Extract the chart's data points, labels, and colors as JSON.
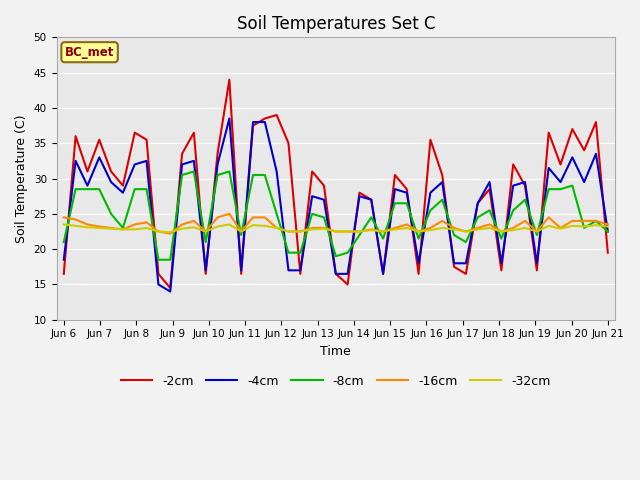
{
  "title": "Soil Temperatures Set C",
  "xlabel": "Time",
  "ylabel": "Soil Temperature (C)",
  "ylim": [
    10,
    50
  ],
  "yticks": [
    10,
    15,
    20,
    25,
    30,
    35,
    40,
    45,
    50
  ],
  "annotation": "BC_met",
  "annotation_color": "#8B0000",
  "annotation_bg": "#FFFF99",
  "legend_labels": [
    "-2cm",
    "-4cm",
    "-8cm",
    "-16cm",
    "-32cm"
  ],
  "line_colors": [
    "#DD0000",
    "#0000CC",
    "#00BB00",
    "#FF8800",
    "#CCCC00"
  ],
  "line_widths": [
    1.5,
    1.5,
    1.5,
    1.5,
    1.5
  ],
  "bg_color": "#E8E8E8",
  "xtick_labels": [
    "Jun 6",
    "Jun 7",
    "Jun 8",
    "Jun 9",
    "Jun 10",
    "Jun 11",
    "Jun 12",
    "Jun 13",
    "Jun 14",
    "Jun 15",
    "Jun 16",
    "Jun 17",
    "Jun 18",
    "Jun 19",
    "Jun 20",
    "Jun 21"
  ],
  "series_2cm": [
    16.5,
    36.0,
    31.0,
    35.5,
    31.0,
    29.0,
    36.5,
    35.5,
    16.5,
    14.5,
    33.5,
    36.5,
    16.5,
    33.5,
    44.0,
    16.5,
    37.5,
    38.5,
    39.0,
    35.0,
    16.5,
    31.0,
    29.0,
    16.5,
    15.0,
    28.0,
    27.0,
    16.5,
    30.5,
    28.5,
    16.5,
    35.5,
    30.5,
    17.5,
    16.5,
    26.5,
    28.5,
    17.0,
    32.0,
    29.0,
    17.0,
    36.5,
    32.0,
    37.0,
    34.0,
    38.0,
    19.5
  ],
  "series_4cm": [
    18.5,
    32.5,
    29.0,
    33.0,
    29.5,
    28.0,
    32.0,
    32.5,
    15.0,
    14.0,
    32.0,
    32.5,
    17.0,
    32.0,
    38.5,
    17.0,
    38.0,
    38.0,
    31.0,
    17.0,
    17.0,
    27.5,
    27.0,
    16.5,
    16.5,
    27.5,
    27.0,
    16.5,
    28.5,
    28.0,
    18.0,
    28.0,
    29.5,
    18.0,
    18.0,
    26.5,
    29.5,
    18.0,
    29.0,
    29.5,
    18.0,
    31.5,
    29.5,
    33.0,
    29.5,
    33.5,
    22.5
  ],
  "series_8cm": [
    21.0,
    28.5,
    28.5,
    28.5,
    25.0,
    23.0,
    28.5,
    28.5,
    18.5,
    18.5,
    30.5,
    31.0,
    21.0,
    30.5,
    31.0,
    22.0,
    30.5,
    30.5,
    25.0,
    19.5,
    19.5,
    25.0,
    24.5,
    19.0,
    19.5,
    22.0,
    24.5,
    21.5,
    26.5,
    26.5,
    21.5,
    25.5,
    27.0,
    22.0,
    21.0,
    24.5,
    25.5,
    21.5,
    25.5,
    27.0,
    22.0,
    28.5,
    28.5,
    29.0,
    23.0,
    24.0,
    22.5
  ],
  "series_16cm": [
    24.5,
    24.2,
    23.5,
    23.2,
    23.0,
    22.8,
    23.5,
    23.8,
    22.5,
    22.2,
    23.5,
    24.0,
    22.5,
    24.5,
    25.0,
    22.5,
    24.5,
    24.5,
    23.0,
    22.5,
    22.5,
    23.0,
    23.0,
    22.5,
    22.5,
    22.5,
    22.8,
    22.5,
    23.0,
    23.5,
    22.5,
    23.0,
    24.0,
    23.0,
    22.5,
    23.0,
    23.5,
    22.5,
    23.0,
    24.0,
    22.5,
    24.5,
    23.0,
    24.0,
    24.0,
    24.0,
    23.5
  ],
  "series_32cm": [
    23.5,
    23.3,
    23.1,
    23.0,
    22.9,
    22.8,
    22.8,
    23.0,
    22.5,
    22.4,
    22.9,
    23.1,
    22.5,
    23.2,
    23.5,
    22.5,
    23.4,
    23.3,
    23.0,
    22.5,
    22.5,
    22.8,
    22.9,
    22.5,
    22.5,
    22.5,
    22.7,
    22.5,
    22.8,
    23.0,
    22.5,
    22.7,
    23.0,
    22.8,
    22.5,
    22.8,
    23.0,
    22.5,
    22.7,
    23.0,
    22.5,
    23.3,
    22.9,
    23.3,
    23.2,
    23.4,
    23.2
  ]
}
